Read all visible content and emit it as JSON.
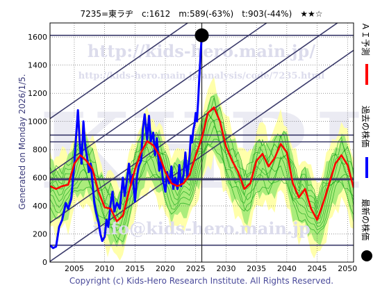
{
  "header": {
    "title": "7235=東ラヂ　c:1612　m:589(-63%)　t:903(-44%)　★★☆"
  },
  "side_label": "Generated on Monday 2026/1/5.",
  "footer": "Copyright (c) Kids-Hero Research Institute. All Rights Reserved.",
  "watermarks": {
    "url_top": "http://kids-hero.main.jp/",
    "url_sub": "http://kids-hero.main.jp/analysis/code/7235.html",
    "url_bottom": "info@kids-hero.main.jp",
    "big": "KHRI"
  },
  "legend": {
    "ai_forecast": "ＡＩ予測",
    "past_price": "過去の株価",
    "latest_price": "最新の株価"
  },
  "colors": {
    "past": "#0000ff",
    "forecast": "#ff0000",
    "band_fill": "#66dd55",
    "band_lines": "#22aa22",
    "yellow_fill": "#ffffaa",
    "reference_lines": "#3a3a6a",
    "latest_marker": "#000000"
  },
  "chart_data": {
    "type": "line",
    "title": "7235=東ラヂ　c:1612　m:589(-63%)　t:903(-44%)　★★☆",
    "xlim": [
      2001,
      2051
    ],
    "ylim": [
      0,
      1700
    ],
    "x_ticks": [
      2005,
      2010,
      2015,
      2020,
      2025,
      2030,
      2035,
      2040,
      2045,
      2050
    ],
    "y_ticks": [
      0,
      200,
      400,
      600,
      800,
      1000,
      1200,
      1400,
      1600
    ],
    "grid": true,
    "latest": {
      "x": 2026.0,
      "y": 1612,
      "label": "c:1612"
    },
    "horizontal_levels": [
      1612,
      903,
      855,
      589,
      120
    ],
    "trend_channel_lines": [
      {
        "x": [
          2001,
          2051
        ],
        "y": [
          1020,
          2520
        ]
      },
      {
        "x": [
          2001,
          2051
        ],
        "y": [
          630,
          2130
        ]
      },
      {
        "x": [
          2001,
          2051
        ],
        "y": [
          280,
          1780
        ]
      },
      {
        "x": [
          2001,
          2051
        ],
        "y": [
          5,
          1505
        ]
      }
    ],
    "vertical_marker_x": 2026,
    "series": [
      {
        "name": "過去の株価",
        "color": "#0000ff",
        "x": [
          2001,
          2001.5,
          2002,
          2002.5,
          2003,
          2003.3,
          2003.6,
          2004,
          2004.5,
          2005,
          2005.3,
          2005.6,
          2005.9,
          2006.2,
          2006.5,
          2006.8,
          2007.1,
          2007.4,
          2007.7,
          2008,
          2008.3,
          2008.6,
          2009,
          2009.3,
          2009.6,
          2010,
          2010.3,
          2010.6,
          2011,
          2011.3,
          2011.6,
          2012,
          2012.5,
          2013,
          2013.3,
          2013.6,
          2014,
          2014.3,
          2014.6,
          2015,
          2015.3,
          2015.6,
          2016,
          2016.3,
          2016.6,
          2017,
          2017.3,
          2017.6,
          2018,
          2018.3,
          2018.6,
          2019,
          2019.3,
          2019.6,
          2020,
          2020.3,
          2020.6,
          2021,
          2021.3,
          2021.6,
          2022,
          2022.3,
          2022.6,
          2023,
          2023.3,
          2023.6,
          2024,
          2024.2,
          2024.4,
          2024.6,
          2024.8,
          2025,
          2025.2,
          2025.4,
          2025.6,
          2025.8,
          2026
        ],
        "y": [
          120,
          100,
          110,
          250,
          300,
          360,
          420,
          380,
          450,
          700,
          900,
          1080,
          850,
          700,
          1000,
          820,
          750,
          640,
          700,
          560,
          420,
          350,
          280,
          200,
          150,
          180,
          300,
          250,
          420,
          500,
          360,
          420,
          380,
          600,
          470,
          560,
          700,
          560,
          620,
          430,
          600,
          680,
          720,
          950,
          1050,
          870,
          1040,
          860,
          920,
          760,
          880,
          650,
          720,
          580,
          500,
          640,
          560,
          680,
          520,
          600,
          520,
          690,
          540,
          620,
          780,
          600,
          760,
          900,
          850,
          940,
          980,
          1060,
          1000,
          1150,
          1320,
          1480,
          1612
        ]
      },
      {
        "name": "ＡＩ予測",
        "color": "#ff0000",
        "x": [
          2001,
          2002,
          2003,
          2004,
          2005,
          2006,
          2007,
          2008,
          2009,
          2010,
          2011,
          2012,
          2013,
          2014,
          2015,
          2016,
          2017,
          2018,
          2019,
          2020,
          2021,
          2022,
          2023,
          2024,
          2025,
          2026,
          2027,
          2028,
          2029,
          2030,
          2031,
          2032,
          2033,
          2034,
          2035,
          2036,
          2037,
          2038,
          2039,
          2040,
          2041,
          2042,
          2043,
          2044,
          2045,
          2046,
          2047,
          2048,
          2049,
          2050,
          2051
        ],
        "y": [
          540,
          520,
          540,
          550,
          700,
          760,
          720,
          660,
          500,
          390,
          380,
          290,
          330,
          500,
          660,
          780,
          860,
          830,
          760,
          640,
          560,
          540,
          560,
          620,
          760,
          880,
          1060,
          1100,
          1000,
          820,
          720,
          640,
          520,
          560,
          720,
          770,
          680,
          740,
          840,
          780,
          560,
          460,
          520,
          380,
          300,
          420,
          560,
          700,
          760,
          690,
          530
        ]
      }
    ]
  }
}
